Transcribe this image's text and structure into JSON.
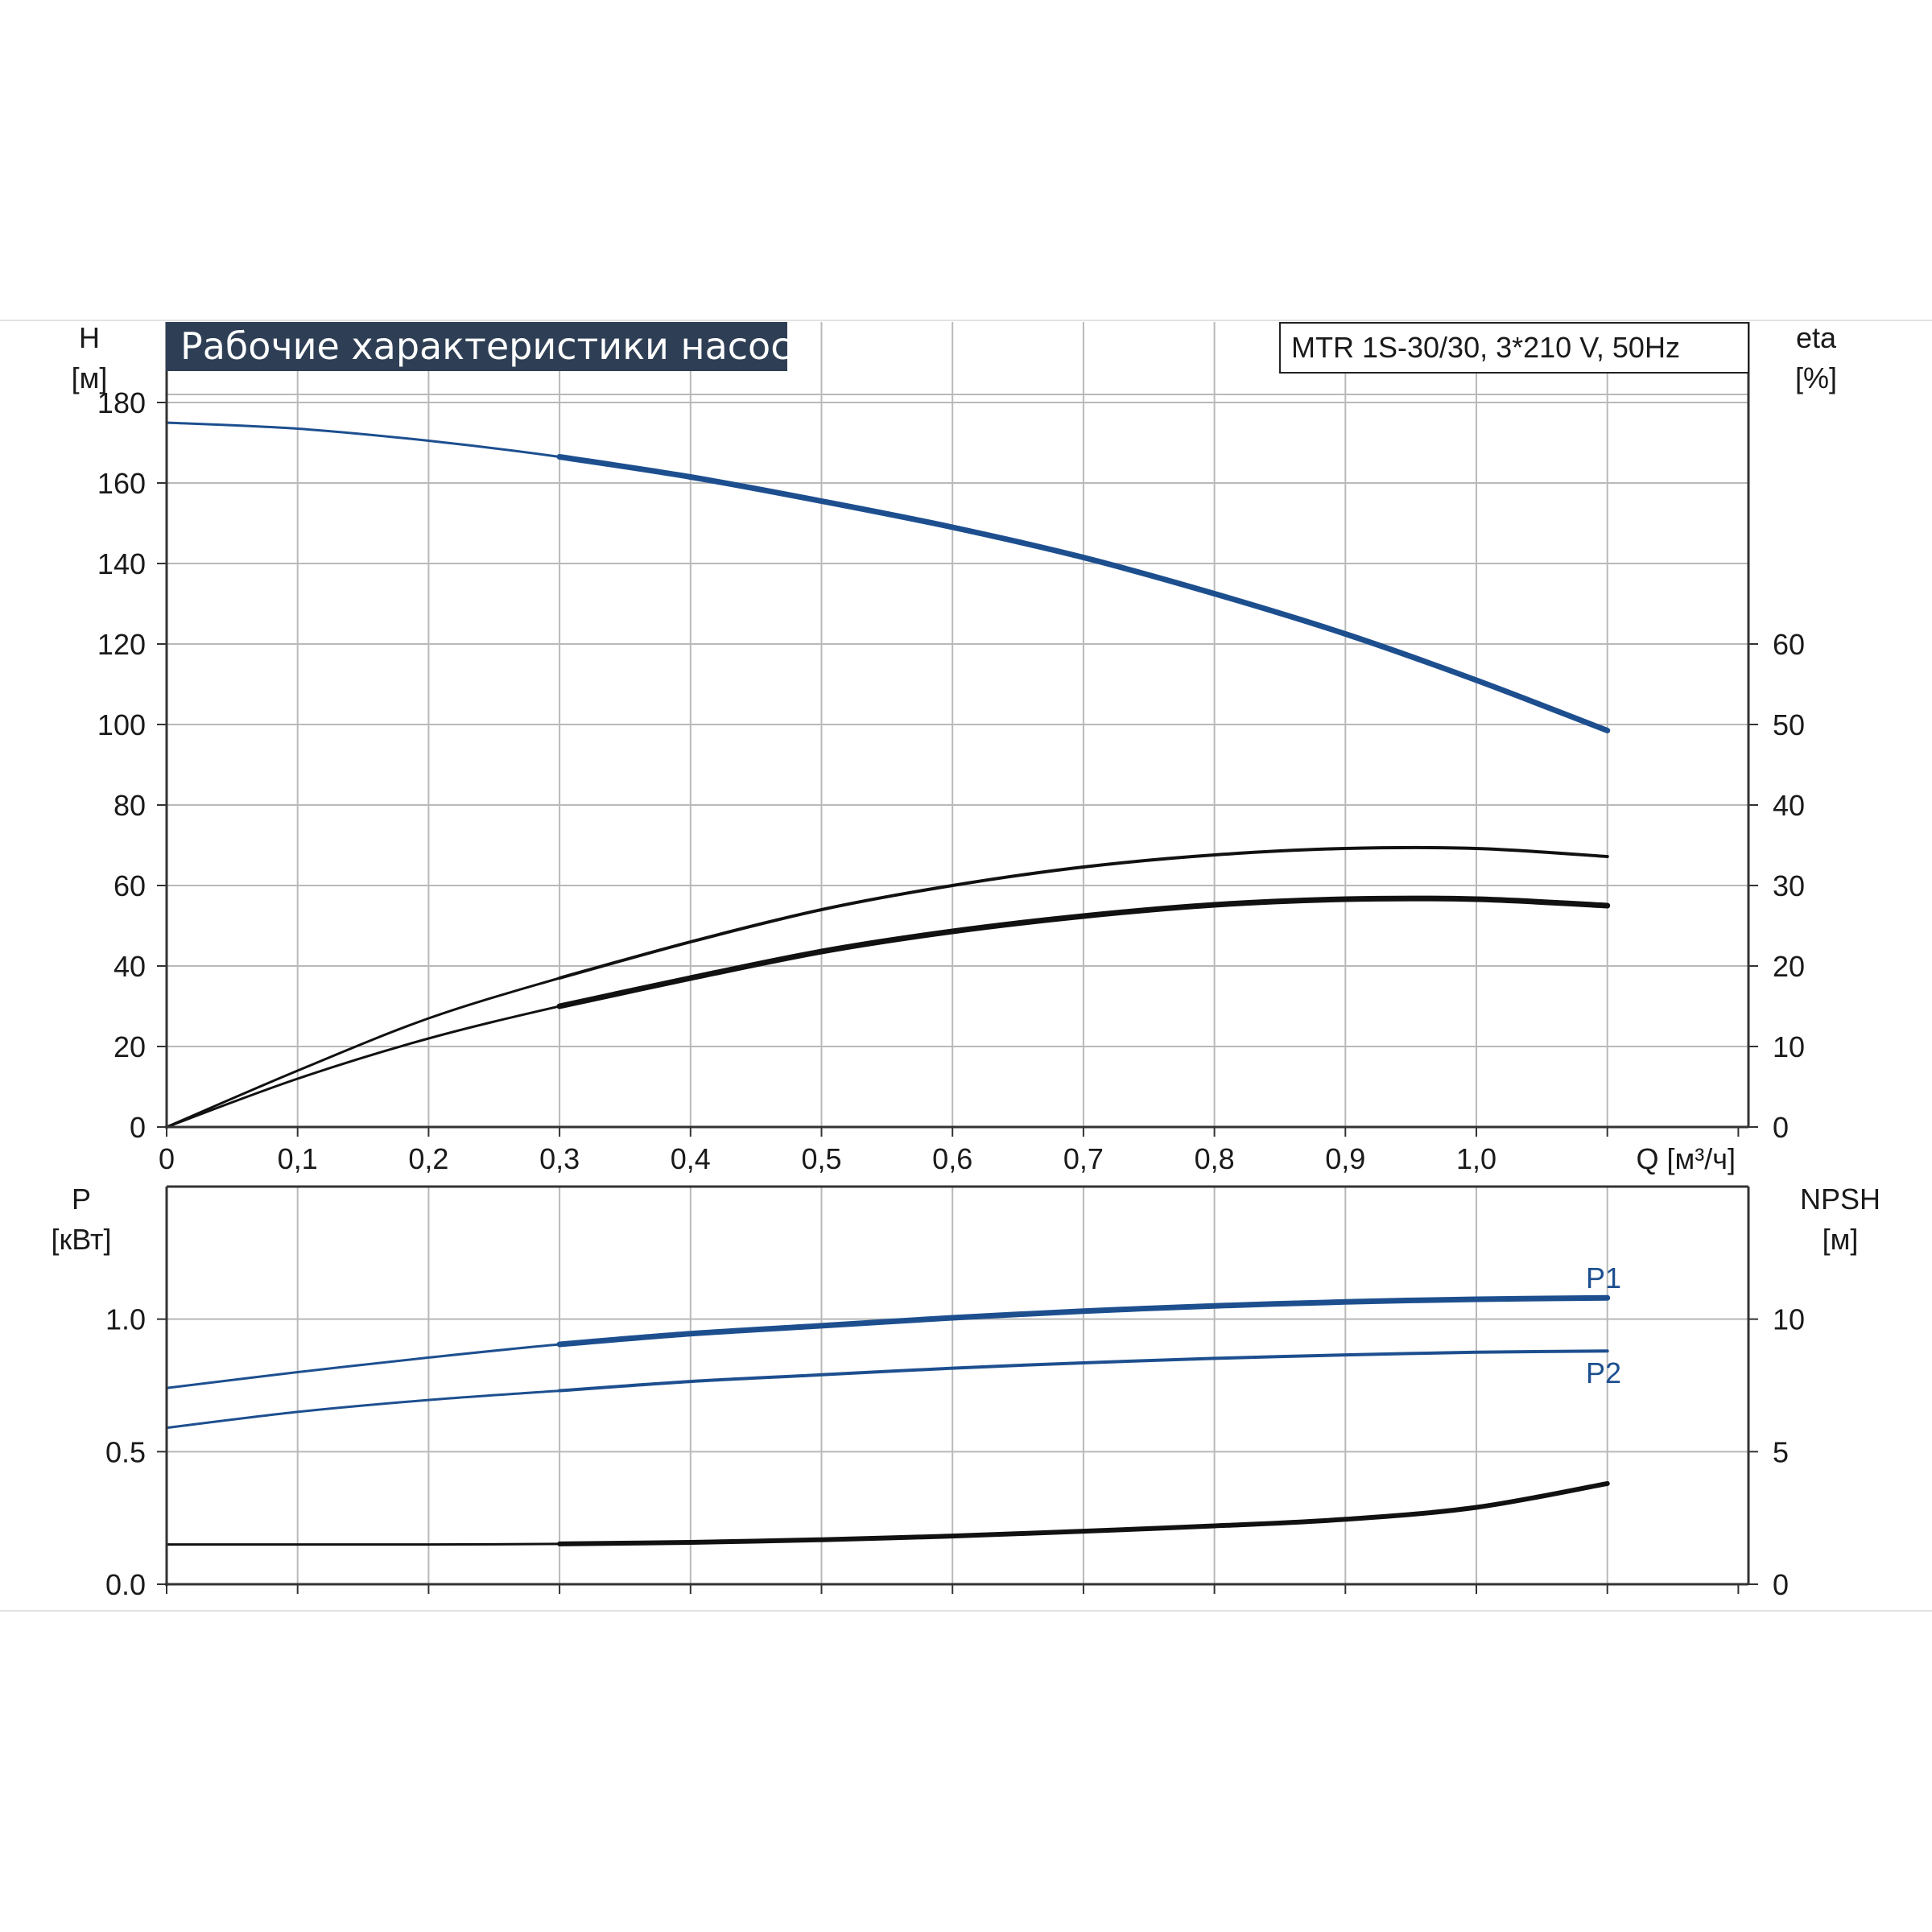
{
  "chart_title": "Рабочие характеристики насоса",
  "model_label": "MTR 1S-30/30, 3*210 V, 50Hz",
  "colors": {
    "title_bg": "#2e3f55",
    "blue": "#1d4f8f",
    "black": "#111111",
    "grid": "#b9b9b9"
  },
  "chart_data": [
    {
      "type": "line",
      "panel": "upper",
      "xlabel": "Q [м³/ч]",
      "x_ticks": [
        "0",
        "0,1",
        "0,2",
        "0,3",
        "0,4",
        "0,5",
        "0,6",
        "0,7",
        "0,8",
        "0,9",
        "1,0"
      ],
      "xlim": [
        0,
        1.2
      ],
      "ylabel_left": [
        "H",
        "[м]"
      ],
      "ylim_left": [
        0,
        200
      ],
      "yticks_left": [
        "0",
        "20",
        "40",
        "60",
        "80",
        "100",
        "120",
        "140",
        "160",
        "180"
      ],
      "ylabel_right": [
        "eta",
        "[%]"
      ],
      "ylim_right": [
        0,
        100
      ],
      "yticks_right": [
        "0",
        "10",
        "20",
        "30",
        "40",
        "50",
        "60"
      ],
      "grid": true,
      "series": [
        {
          "axis": "left",
          "color": "blue",
          "x": [
            0,
            0.1,
            0.2,
            0.3,
            0.4,
            0.5,
            0.6,
            0.7,
            0.8,
            0.9,
            1.0,
            1.1
          ],
          "y": [
            175,
            173.5,
            170.5,
            166.5,
            161.5,
            155.5,
            149,
            141.5,
            132.5,
            122.5,
            111,
            98.5
          ]
        },
        {
          "axis": "right",
          "color": "black",
          "x": [
            0,
            0.1,
            0.2,
            0.3,
            0.4,
            0.5,
            0.6,
            0.7,
            0.8,
            0.9,
            1.0,
            1.1
          ],
          "y": [
            0,
            7,
            13.5,
            18.5,
            23,
            27,
            30,
            32.3,
            33.8,
            34.6,
            34.6,
            33.6
          ]
        },
        {
          "axis": "right",
          "color": "black",
          "x": [
            0,
            0.1,
            0.2,
            0.3,
            0.4,
            0.5,
            0.6,
            0.7,
            0.8,
            0.9,
            1.0,
            1.1
          ],
          "y": [
            0,
            6,
            11,
            15,
            18.5,
            21.8,
            24.3,
            26.2,
            27.6,
            28.3,
            28.3,
            27.5
          ]
        }
      ]
    },
    {
      "type": "line",
      "panel": "lower",
      "xlim": [
        0,
        1.2
      ],
      "ylabel_left": [
        "P",
        "[кВт]"
      ],
      "ylim_left": [
        0,
        1.5
      ],
      "yticks_left": [
        "0.0",
        "0.5",
        "1.0"
      ],
      "ylabel_right": [
        "NPSH",
        "[м]"
      ],
      "ylim_right": [
        0,
        15
      ],
      "yticks_right": [
        "0",
        "5",
        "10"
      ],
      "grid": true,
      "series": [
        {
          "name": "P1",
          "axis": "left",
          "color": "blue",
          "x": [
            0,
            0.1,
            0.2,
            0.3,
            0.4,
            0.5,
            0.6,
            0.7,
            0.8,
            0.9,
            1.0,
            1.1
          ],
          "y": [
            0.74,
            0.8,
            0.855,
            0.905,
            0.945,
            0.975,
            1.005,
            1.03,
            1.05,
            1.065,
            1.075,
            1.08
          ]
        },
        {
          "name": "P2",
          "axis": "left",
          "color": "blue",
          "x": [
            0,
            0.1,
            0.2,
            0.3,
            0.4,
            0.5,
            0.6,
            0.7,
            0.8,
            0.9,
            1.0,
            1.1
          ],
          "y": [
            0.59,
            0.65,
            0.695,
            0.73,
            0.765,
            0.79,
            0.815,
            0.835,
            0.852,
            0.865,
            0.875,
            0.88
          ]
        },
        {
          "axis": "right",
          "color": "black",
          "x": [
            0,
            0.1,
            0.2,
            0.3,
            0.4,
            0.5,
            0.6,
            0.7,
            0.8,
            0.9,
            1.0,
            1.1
          ],
          "y": [
            1.5,
            1.5,
            1.5,
            1.52,
            1.58,
            1.68,
            1.82,
            2.0,
            2.2,
            2.45,
            2.9,
            3.8
          ]
        }
      ]
    }
  ]
}
